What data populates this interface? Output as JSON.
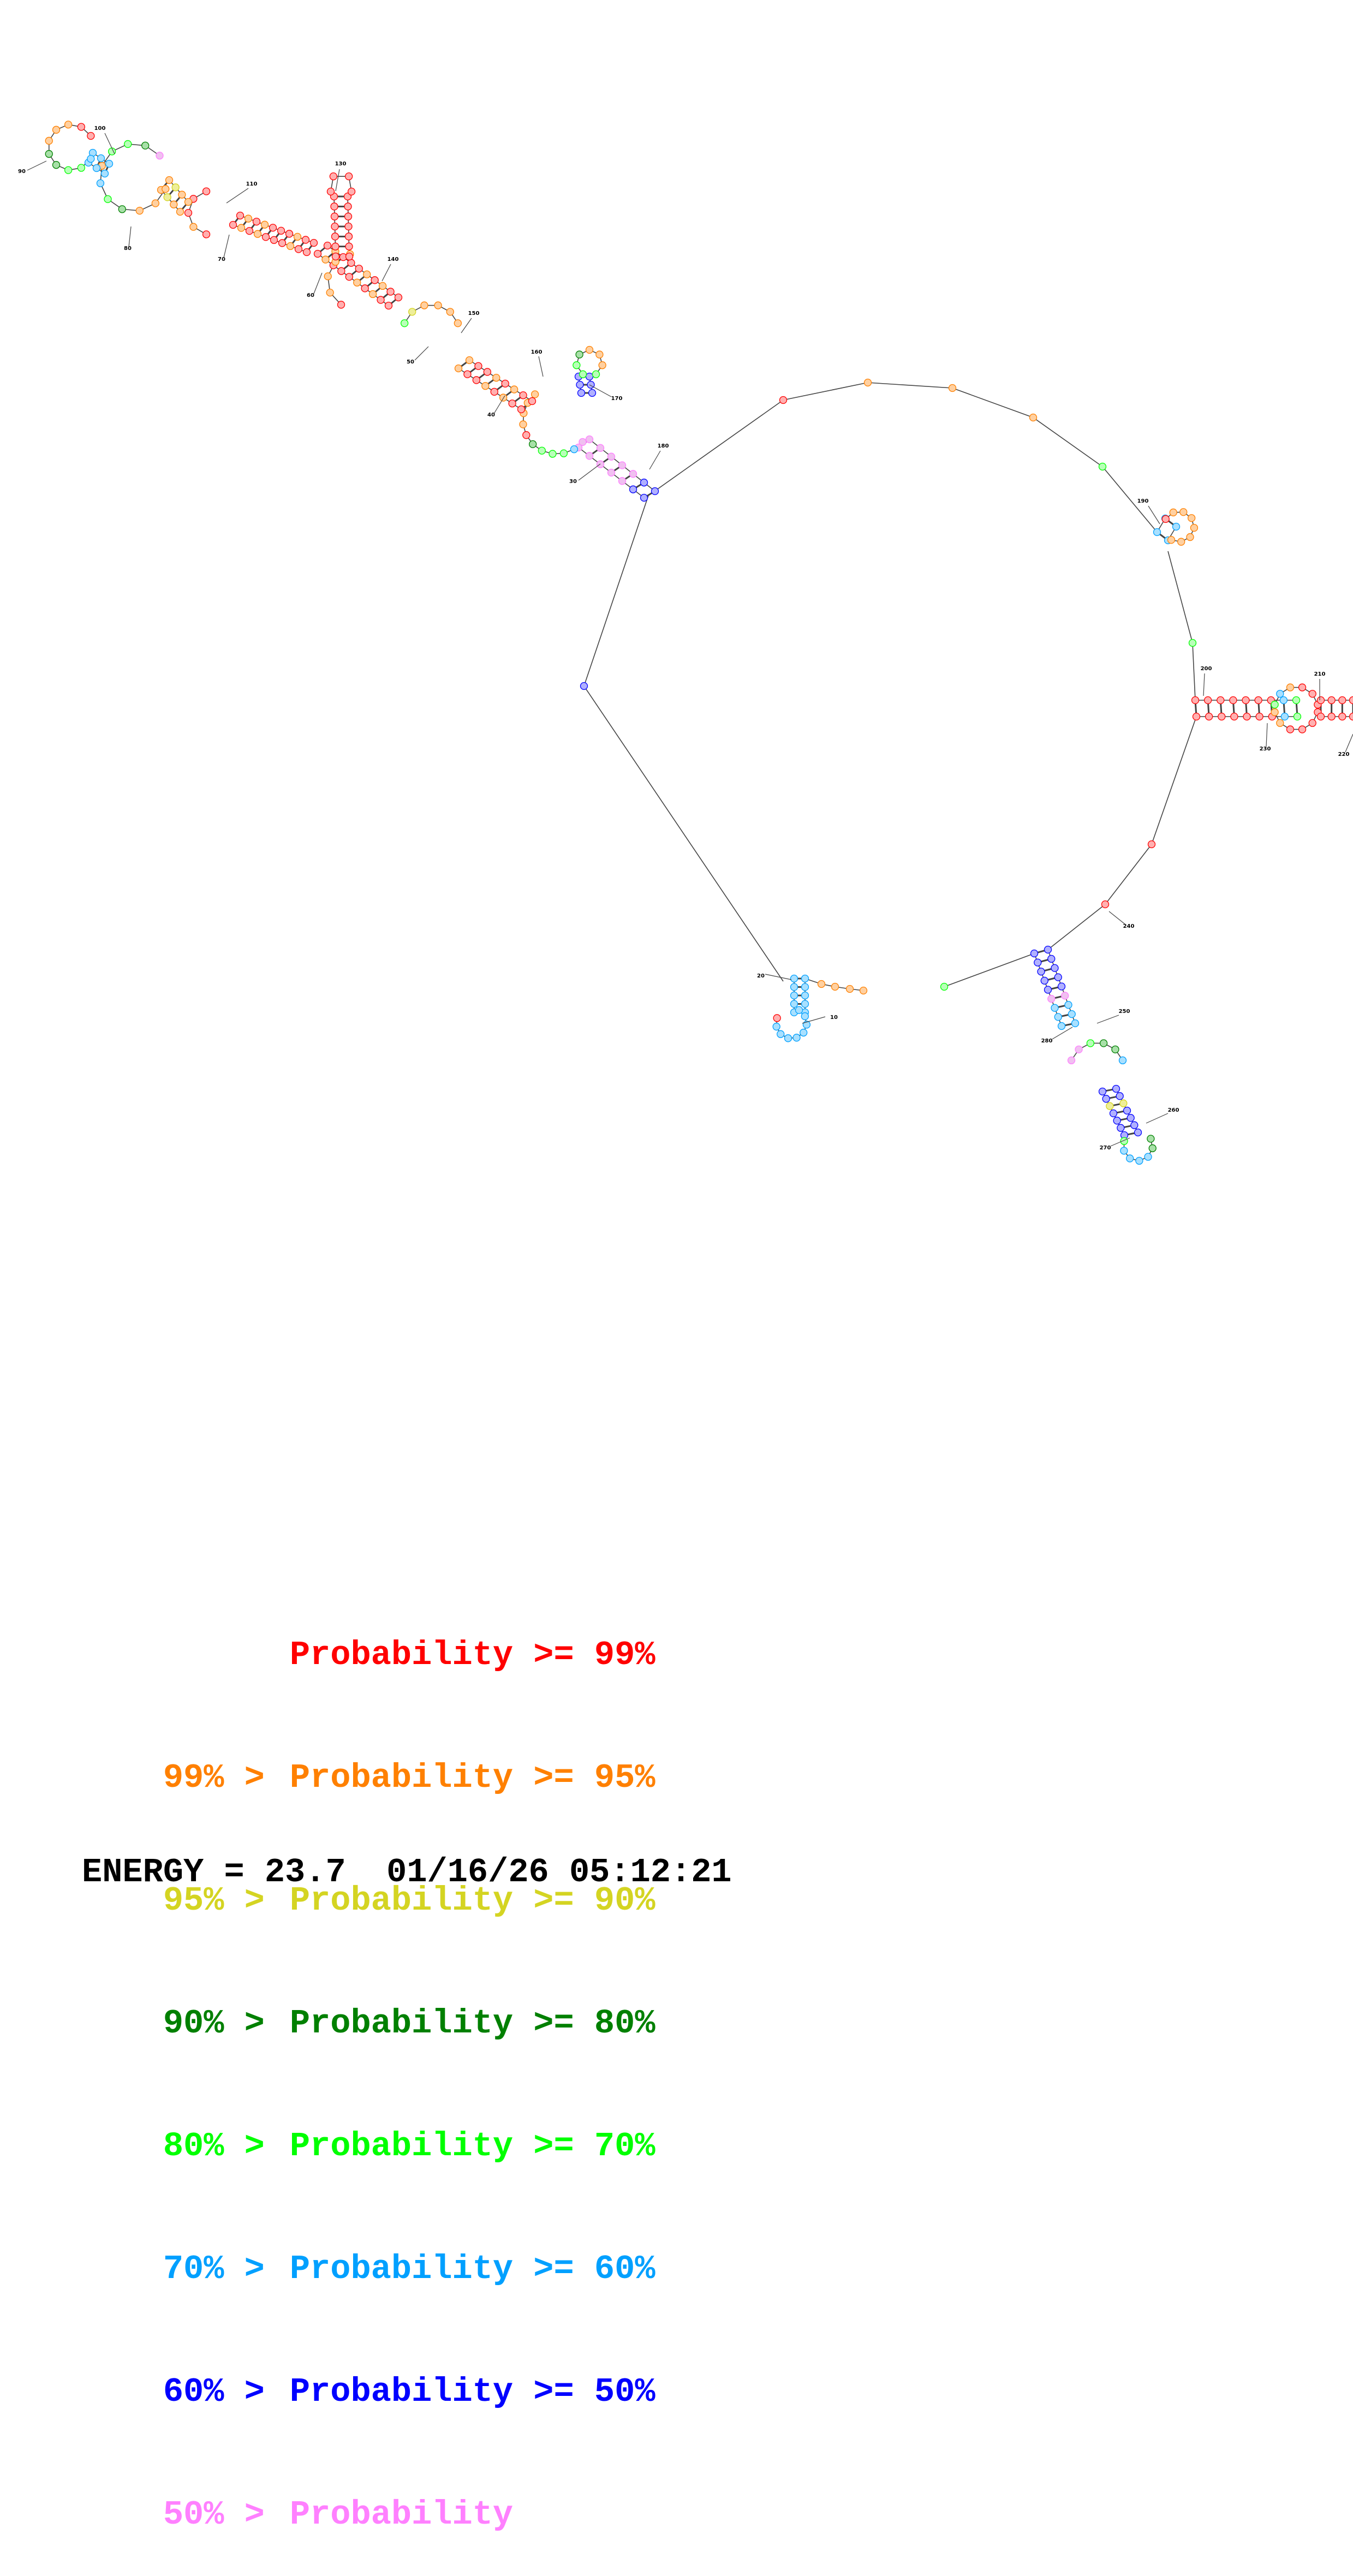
{
  "structure": {
    "numbering": [
      "10",
      "20",
      "30",
      "40",
      "50",
      "60",
      "70",
      "80",
      "90",
      "100",
      "110",
      "130",
      "140",
      "150",
      "160",
      "170",
      "180",
      "190",
      "200",
      "210",
      "220",
      "230",
      "240",
      "250",
      "260",
      "270",
      "280"
    ]
  },
  "legend": {
    "rows": [
      {
        "prefix": "",
        "text": "Probability >= 99%",
        "color": "#ff0000"
      },
      {
        "prefix": "99% > ",
        "text": "Probability >= 95%",
        "color": "#ff8000"
      },
      {
        "prefix": "95% > ",
        "text": "Probability >= 90%",
        "color": "#d4d422"
      },
      {
        "prefix": "90% > ",
        "text": "Probability >= 80%",
        "color": "#008000"
      },
      {
        "prefix": "80% > ",
        "text": "Probability >= 70%",
        "color": "#00ff00"
      },
      {
        "prefix": "70% > ",
        "text": "Probability >= 60%",
        "color": "#00a0ff"
      },
      {
        "prefix": "60% > ",
        "text": "Probability >= 50%",
        "color": "#0000ff"
      },
      {
        "prefix": "50% > ",
        "text": "Probability",
        "color": "#ff80ff"
      }
    ]
  },
  "footer": {
    "energy_label": "ENERGY = 23.7",
    "timestamp": "01/16/26 05:12:21"
  },
  "colors": {
    "p99": "#ff0000",
    "p95": "#ff8000",
    "p90": "#d4d422",
    "p80": "#008000",
    "p70": "#00ff00",
    "p60": "#00a0ff",
    "p50": "#0000ff",
    "plow": "#ff80ff"
  }
}
